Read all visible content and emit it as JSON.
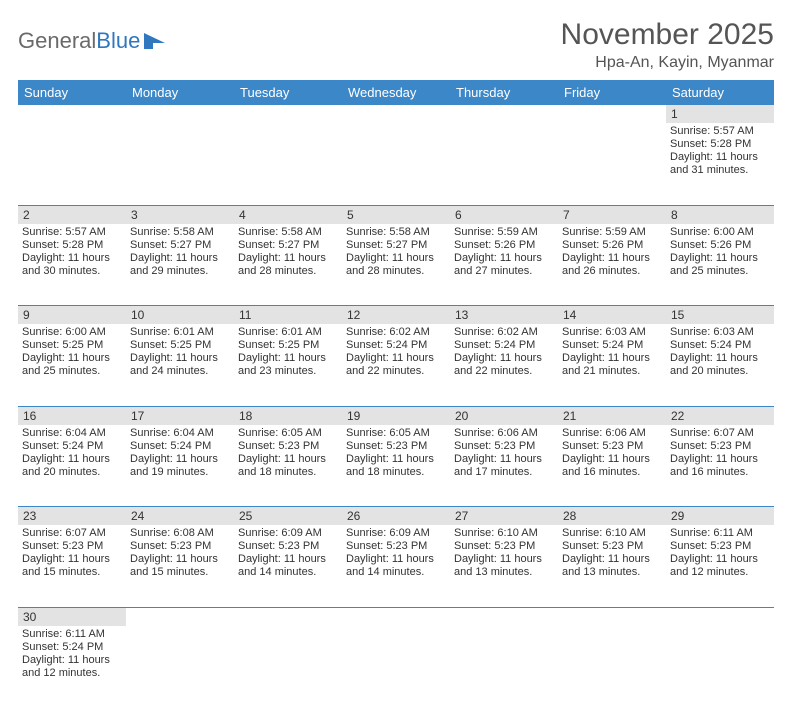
{
  "brand": {
    "part1": "General",
    "part2": "Blue",
    "logo_color": "#2f78bf",
    "text_color": "#6a6a6a"
  },
  "title": "November 2025",
  "location": "Hpa-An, Kayin, Myanmar",
  "colors": {
    "header_bg": "#3b87c8",
    "header_fg": "#ffffff",
    "daynum_bg": "#e3e3e3",
    "border": "#3b87c8",
    "body_text": "#333333"
  },
  "dow": [
    "Sunday",
    "Monday",
    "Tuesday",
    "Wednesday",
    "Thursday",
    "Friday",
    "Saturday"
  ],
  "weeks": [
    [
      null,
      null,
      null,
      null,
      null,
      null,
      {
        "n": "1",
        "sunrise": "5:57 AM",
        "sunset": "5:28 PM",
        "daylight": "11 hours and 31 minutes."
      }
    ],
    [
      {
        "n": "2",
        "sunrise": "5:57 AM",
        "sunset": "5:28 PM",
        "daylight": "11 hours and 30 minutes."
      },
      {
        "n": "3",
        "sunrise": "5:58 AM",
        "sunset": "5:27 PM",
        "daylight": "11 hours and 29 minutes."
      },
      {
        "n": "4",
        "sunrise": "5:58 AM",
        "sunset": "5:27 PM",
        "daylight": "11 hours and 28 minutes."
      },
      {
        "n": "5",
        "sunrise": "5:58 AM",
        "sunset": "5:27 PM",
        "daylight": "11 hours and 28 minutes."
      },
      {
        "n": "6",
        "sunrise": "5:59 AM",
        "sunset": "5:26 PM",
        "daylight": "11 hours and 27 minutes."
      },
      {
        "n": "7",
        "sunrise": "5:59 AM",
        "sunset": "5:26 PM",
        "daylight": "11 hours and 26 minutes."
      },
      {
        "n": "8",
        "sunrise": "6:00 AM",
        "sunset": "5:26 PM",
        "daylight": "11 hours and 25 minutes."
      }
    ],
    [
      {
        "n": "9",
        "sunrise": "6:00 AM",
        "sunset": "5:25 PM",
        "daylight": "11 hours and 25 minutes."
      },
      {
        "n": "10",
        "sunrise": "6:01 AM",
        "sunset": "5:25 PM",
        "daylight": "11 hours and 24 minutes."
      },
      {
        "n": "11",
        "sunrise": "6:01 AM",
        "sunset": "5:25 PM",
        "daylight": "11 hours and 23 minutes."
      },
      {
        "n": "12",
        "sunrise": "6:02 AM",
        "sunset": "5:24 PM",
        "daylight": "11 hours and 22 minutes."
      },
      {
        "n": "13",
        "sunrise": "6:02 AM",
        "sunset": "5:24 PM",
        "daylight": "11 hours and 22 minutes."
      },
      {
        "n": "14",
        "sunrise": "6:03 AM",
        "sunset": "5:24 PM",
        "daylight": "11 hours and 21 minutes."
      },
      {
        "n": "15",
        "sunrise": "6:03 AM",
        "sunset": "5:24 PM",
        "daylight": "11 hours and 20 minutes."
      }
    ],
    [
      {
        "n": "16",
        "sunrise": "6:04 AM",
        "sunset": "5:24 PM",
        "daylight": "11 hours and 20 minutes."
      },
      {
        "n": "17",
        "sunrise": "6:04 AM",
        "sunset": "5:24 PM",
        "daylight": "11 hours and 19 minutes."
      },
      {
        "n": "18",
        "sunrise": "6:05 AM",
        "sunset": "5:23 PM",
        "daylight": "11 hours and 18 minutes."
      },
      {
        "n": "19",
        "sunrise": "6:05 AM",
        "sunset": "5:23 PM",
        "daylight": "11 hours and 18 minutes."
      },
      {
        "n": "20",
        "sunrise": "6:06 AM",
        "sunset": "5:23 PM",
        "daylight": "11 hours and 17 minutes."
      },
      {
        "n": "21",
        "sunrise": "6:06 AM",
        "sunset": "5:23 PM",
        "daylight": "11 hours and 16 minutes."
      },
      {
        "n": "22",
        "sunrise": "6:07 AM",
        "sunset": "5:23 PM",
        "daylight": "11 hours and 16 minutes."
      }
    ],
    [
      {
        "n": "23",
        "sunrise": "6:07 AM",
        "sunset": "5:23 PM",
        "daylight": "11 hours and 15 minutes."
      },
      {
        "n": "24",
        "sunrise": "6:08 AM",
        "sunset": "5:23 PM",
        "daylight": "11 hours and 15 minutes."
      },
      {
        "n": "25",
        "sunrise": "6:09 AM",
        "sunset": "5:23 PM",
        "daylight": "11 hours and 14 minutes."
      },
      {
        "n": "26",
        "sunrise": "6:09 AM",
        "sunset": "5:23 PM",
        "daylight": "11 hours and 14 minutes."
      },
      {
        "n": "27",
        "sunrise": "6:10 AM",
        "sunset": "5:23 PM",
        "daylight": "11 hours and 13 minutes."
      },
      {
        "n": "28",
        "sunrise": "6:10 AM",
        "sunset": "5:23 PM",
        "daylight": "11 hours and 13 minutes."
      },
      {
        "n": "29",
        "sunrise": "6:11 AM",
        "sunset": "5:23 PM",
        "daylight": "11 hours and 12 minutes."
      }
    ],
    [
      {
        "n": "30",
        "sunrise": "6:11 AM",
        "sunset": "5:24 PM",
        "daylight": "11 hours and 12 minutes."
      },
      null,
      null,
      null,
      null,
      null,
      null
    ]
  ],
  "labels": {
    "sunrise": "Sunrise:",
    "sunset": "Sunset:",
    "daylight": "Daylight:"
  }
}
